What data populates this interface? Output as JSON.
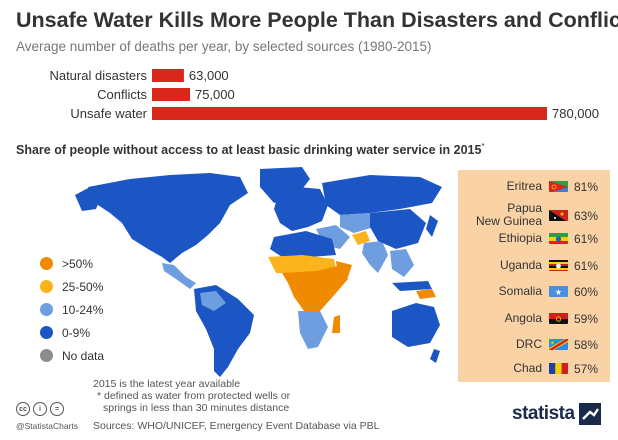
{
  "title": "Unsafe Water Kills More People Than Disasters and Conflict",
  "subtitle": "Average number of deaths per year, by selected sources (1980-2015)",
  "chart_data": {
    "type": "bar",
    "orientation": "horizontal",
    "categories": [
      "Natural disasters",
      "Conflicts",
      "Unsafe water"
    ],
    "values": [
      63000,
      75000,
      780000
    ],
    "value_labels": [
      "63,000",
      "75,000",
      "780,000"
    ],
    "bar_color": "#d8281c"
  },
  "map": {
    "title": "Share of people without access to at least basic drinking water service in 2015",
    "title_marker": "*",
    "legend": [
      {
        "label": ">50%",
        "color": "#f08a00"
      },
      {
        "label": "25-50%",
        "color": "#fbb41c"
      },
      {
        "label": "10-24%",
        "color": "#6e9ee0"
      },
      {
        "label": "0-9%",
        "color": "#1c56c4"
      },
      {
        "label": "No data",
        "color": "#8c8c8c"
      }
    ]
  },
  "top_countries": [
    {
      "name": "Eritrea",
      "value": "81%",
      "flag": "eritrea-flag-icon"
    },
    {
      "name": "Papua\nNew Guinea",
      "value": "63%",
      "flag": "papua-new-guinea-flag-icon"
    },
    {
      "name": "Ethiopia",
      "value": "61%",
      "flag": "ethiopia-flag-icon"
    },
    {
      "name": "Uganda",
      "value": "61%",
      "flag": "uganda-flag-icon"
    },
    {
      "name": "Somalia",
      "value": "60%",
      "flag": "somalia-flag-icon"
    },
    {
      "name": "Angola",
      "value": "59%",
      "flag": "angola-flag-icon"
    },
    {
      "name": "DRC",
      "value": "58%",
      "flag": "drc-flag-icon"
    },
    {
      "name": "Chad",
      "value": "57%",
      "flag": "chad-flag-icon"
    }
  ],
  "notes": {
    "line1": "2015 is the latest year available",
    "line2": "* defined as water from protected wells or",
    "line3": "springs in less than 30 minutes distance"
  },
  "sources": "Sources: WHO/UNICEF, Emergency Event Database via PBL",
  "footer": {
    "handle": "@StatistaCharts",
    "brand": "statista",
    "license_icons": [
      "cc",
      "i",
      "="
    ]
  }
}
